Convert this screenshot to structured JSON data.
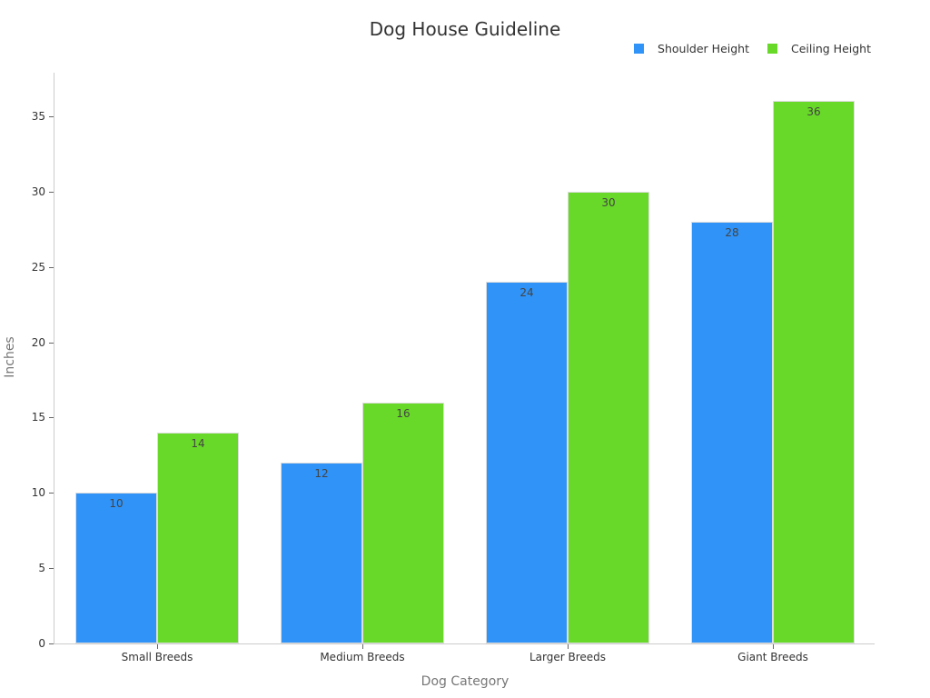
{
  "title": "Dog House Guideline",
  "legend": [
    {
      "label": "Shoulder Height",
      "color": "#3093F7"
    },
    {
      "label": "Ceiling Height",
      "color": "#68D928"
    }
  ],
  "axes": {
    "x_label": "Dog Category",
    "y_label": "Inches",
    "y_ticks": [
      "0",
      "5",
      "10",
      "15",
      "20",
      "25",
      "30",
      "35"
    ]
  },
  "chart_data": {
    "type": "bar",
    "title": "Dog House Guideline",
    "categories": [
      "Small Breeds",
      "Medium Breeds",
      "Larger Breeds",
      "Giant Breeds"
    ],
    "series": [
      {
        "name": "Shoulder Height",
        "values": [
          10,
          12,
          24,
          28
        ],
        "color": "#3093F7"
      },
      {
        "name": "Ceiling Height",
        "values": [
          14,
          16,
          30,
          36
        ],
        "color": "#68D928"
      }
    ],
    "xlabel": "Dog Category",
    "ylabel": "Inches",
    "ylim": [
      0,
      37.9
    ],
    "yticks": [
      0,
      5,
      10,
      15,
      20,
      25,
      30,
      35
    ],
    "grid": false,
    "legend_position": "top-right",
    "data_labels": true
  }
}
